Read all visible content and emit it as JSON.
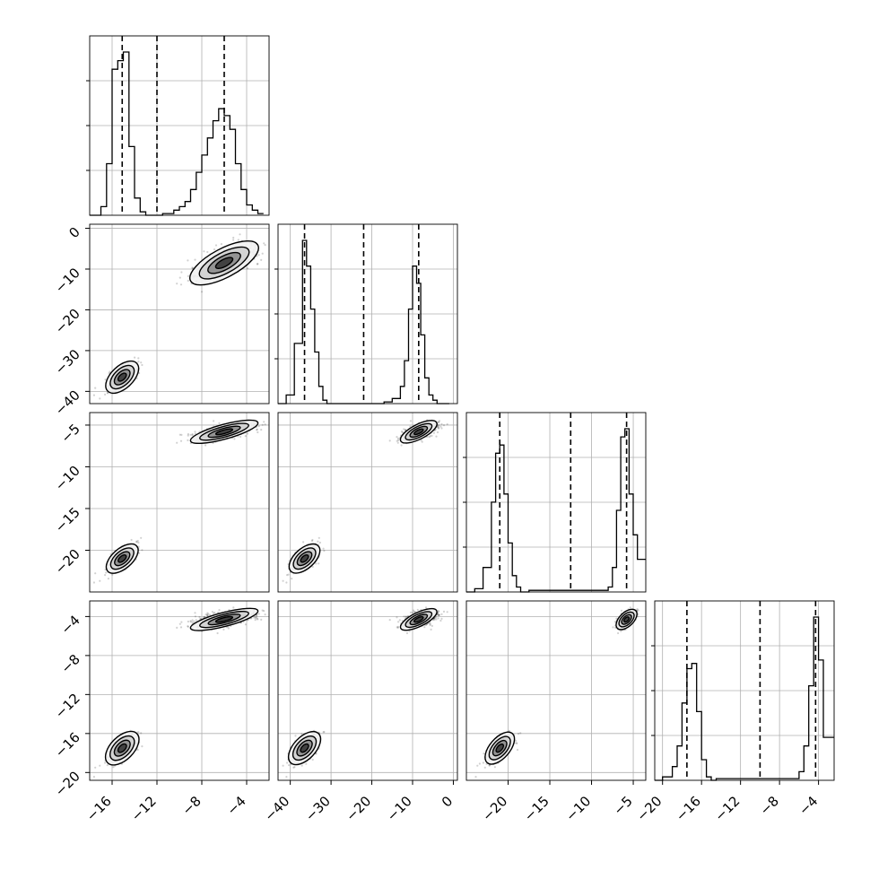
{
  "chart_data": {
    "type": "corner",
    "title": "",
    "grid": true,
    "quantile_lines": "dashed",
    "parameters": [
      {
        "range": [
          -18,
          -2
        ],
        "ticks": [
          -16,
          -12,
          -8,
          -4
        ],
        "tick_labels": [
          "−16",
          "−12",
          "−8",
          "−4"
        ],
        "quantiles": [
          -15.1,
          -12.0,
          -6.0
        ]
      },
      {
        "range": [
          -43,
          1
        ],
        "ticks": [
          -40,
          -30,
          -20,
          -10,
          0
        ],
        "tick_labels": [
          "−40",
          "−30",
          "−20",
          "−10",
          "0"
        ],
        "quantiles": [
          -36.5,
          -22.0,
          -8.5
        ]
      },
      {
        "range": [
          -25,
          -3.5
        ],
        "ticks": [
          -20,
          -15,
          -10,
          -5
        ],
        "tick_labels": [
          "−20",
          "−15",
          "−10",
          "−5"
        ],
        "quantiles": [
          -21.0,
          -12.5,
          -5.8
        ]
      },
      {
        "range": [
          -20.8,
          -2.4
        ],
        "ticks": [
          -20,
          -16,
          -12,
          -8,
          -4
        ],
        "tick_labels": [
          "−20",
          "−16",
          "−12",
          "−8",
          "−4"
        ],
        "quantiles": [
          -17.5,
          -10.0,
          -4.3
        ]
      }
    ],
    "left_axis_labels": {
      "row_1": [
        "0",
        "−10",
        "−20",
        "−30",
        "−40"
      ],
      "row_2": [
        "−5",
        "−10",
        "−15",
        "−20"
      ],
      "row_3": [
        "−4",
        "−8",
        "−12",
        "−16",
        "−20"
      ]
    },
    "modes": [
      {
        "center": [
          -15.1,
          -36.5,
          -21.0,
          -17.5
        ],
        "sd": [
          0.65,
          1.7,
          0.75,
          0.75
        ]
      },
      {
        "center": [
          -6.0,
          -8.5,
          -5.8,
          -4.3
        ],
        "sd": [
          1.5,
          2.2,
          0.55,
          0.45
        ]
      }
    ],
    "histograms": [
      {
        "parameter": 0,
        "bin_edges": [
          -18,
          -17,
          -16.5,
          -16,
          -15.5,
          -15,
          -14.5,
          -14,
          -13.5,
          -13,
          -12.5,
          -12,
          -11.5,
          -11,
          -10.5,
          -10,
          -9.5,
          -9,
          -8.5,
          -8,
          -7.5,
          -7,
          -6.5,
          -6,
          -5.5,
          -5,
          -4.5,
          -4,
          -3.5,
          -3,
          -2.5
        ],
        "counts": [
          0,
          5,
          30,
          85,
          90,
          95,
          40,
          10,
          2,
          0,
          0,
          0,
          1,
          1,
          3,
          5,
          8,
          15,
          25,
          35,
          45,
          55,
          62,
          58,
          50,
          30,
          15,
          6,
          3,
          1
        ]
      },
      {
        "parameter": 1,
        "bin_edges": [
          -43,
          -41,
          -39,
          -37,
          -36,
          -35,
          -34,
          -33,
          -32,
          -31,
          -30,
          -29,
          -17,
          -15,
          -13,
          -12,
          -11,
          -10,
          -9,
          -8,
          -7,
          -6,
          -5,
          -4,
          -3,
          -2,
          -1
        ],
        "counts": [
          0,
          5,
          35,
          95,
          80,
          55,
          30,
          10,
          2,
          0,
          0,
          0,
          1,
          3,
          10,
          25,
          55,
          80,
          70,
          40,
          15,
          5,
          2,
          0,
          0,
          0
        ]
      },
      {
        "parameter": 2,
        "bin_edges": [
          -25,
          -24,
          -23,
          -22,
          -21.5,
          -21,
          -20.5,
          -20,
          -19.5,
          -19,
          -18.5,
          -18,
          -17.5,
          -8,
          -7.5,
          -7,
          -6.5,
          -6,
          -5.5,
          -5,
          -4.5,
          -3.5
        ],
        "counts": [
          0,
          2,
          15,
          55,
          85,
          90,
          60,
          30,
          10,
          3,
          0,
          0,
          1,
          3,
          15,
          50,
          95,
          100,
          60,
          35,
          20
        ]
      },
      {
        "parameter": 3,
        "bin_edges": [
          -20.8,
          -20,
          -19,
          -18.5,
          -18,
          -17.5,
          -17,
          -16.5,
          -16,
          -15.5,
          -15,
          -14.5,
          -6,
          -5.5,
          -5,
          -4.5,
          -4,
          -3.5,
          -2.4
        ],
        "counts": [
          0,
          2,
          8,
          20,
          45,
          65,
          68,
          40,
          12,
          2,
          0,
          1,
          5,
          20,
          55,
          95,
          70,
          25
        ]
      }
    ]
  }
}
